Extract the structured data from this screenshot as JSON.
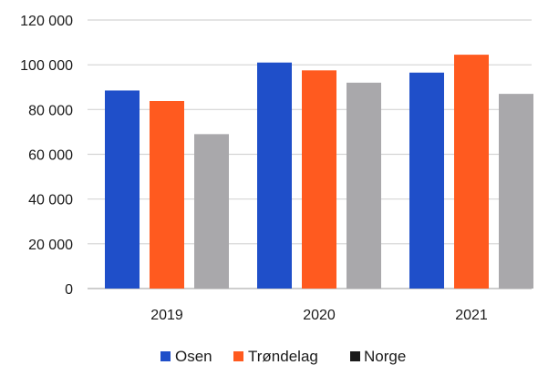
{
  "chart_data": {
    "type": "bar",
    "categories": [
      "2019",
      "2020",
      "2021"
    ],
    "series": [
      {
        "name": "Osen",
        "values": [
          88500,
          101000,
          96500
        ],
        "color": "#1f4fc9"
      },
      {
        "name": "Trøndelag",
        "values": [
          83800,
          97500,
          104500
        ],
        "color": "#ff5a1f"
      },
      {
        "name": "Norge",
        "values": [
          69000,
          92000,
          87000
        ],
        "color": "#a9a8ab"
      }
    ],
    "ylim": [
      0,
      120000
    ],
    "yticks": [
      0,
      20000,
      40000,
      60000,
      80000,
      100000,
      120000
    ],
    "ytick_labels": [
      "0",
      "20 000",
      "40 000",
      "60 000",
      "80 000",
      "100 000",
      "120 000"
    ],
    "grid": true,
    "legend_position": "bottom",
    "legend_marker_colors": [
      "#1f4fc9",
      "#ff5a1f",
      "#1a1a1a"
    ],
    "gridline_color": "#d4d4d4",
    "axis_color": "#bdbdbd"
  }
}
